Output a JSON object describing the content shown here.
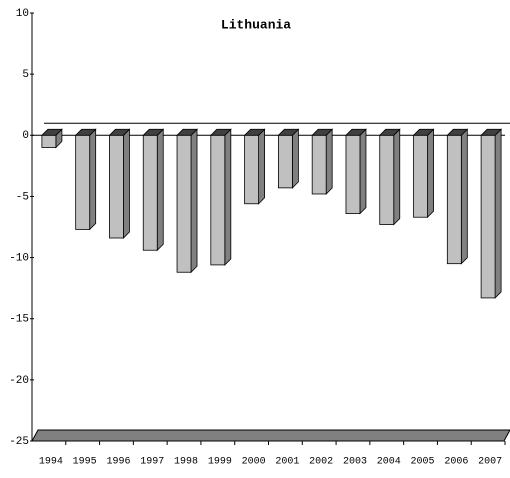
{
  "chart_data": {
    "type": "bar",
    "title": "Lithuania",
    "categories": [
      "1994",
      "1995",
      "1996",
      "1997",
      "1998",
      "1999",
      "2000",
      "2001",
      "2002",
      "2003",
      "2004",
      "2005",
      "2006",
      "2007"
    ],
    "values": [
      -1.0,
      -7.7,
      -8.4,
      -9.4,
      -11.2,
      -10.6,
      -5.6,
      -4.3,
      -4.8,
      -6.4,
      -7.3,
      -6.7,
      -10.5,
      -13.3
    ],
    "color": "#c0c0c0",
    "ylim": [
      -25,
      10
    ],
    "yticks": [
      10,
      5,
      0,
      -5,
      -10,
      -15,
      -20,
      -25
    ]
  }
}
